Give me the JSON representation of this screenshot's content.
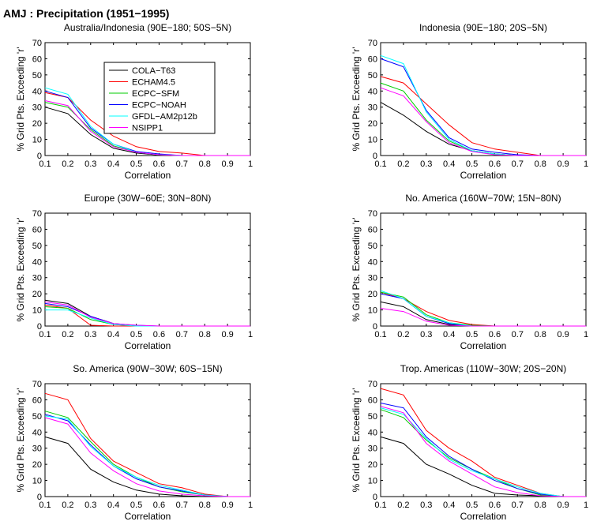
{
  "figure_title": "AMJ : Precipitation (1951−1995)",
  "legend_entries": [
    {
      "name": "COLA−T63",
      "color": "#000000"
    },
    {
      "name": "ECHAM4.5",
      "color": "#ff0000"
    },
    {
      "name": "ECPC−SFM",
      "color": "#00cc00"
    },
    {
      "name": "ECPC−NOAH",
      "color": "#0000ff"
    },
    {
      "name": "GFDL−AM2p12b",
      "color": "#00ffff"
    },
    {
      "name": "NSIPP1",
      "color": "#ff00ff"
    }
  ],
  "chart_data": [
    {
      "type": "line",
      "title": "Australia/Indonesia (90E−180; 50S−5N)",
      "xlabel": "Correlation",
      "ylabel": "% Grid Pts. Exceeding 'r'",
      "x": [
        0.1,
        0.2,
        0.3,
        0.4,
        0.5,
        0.6,
        0.7,
        0.8,
        0.9,
        1.0
      ],
      "xticks": [
        "0.1",
        "0.2",
        "0.3",
        "0.4",
        "0.5",
        "0.6",
        "0.7",
        "0.8",
        "0.9",
        "1"
      ],
      "yticks": [
        "0",
        "10",
        "20",
        "30",
        "40",
        "50",
        "60",
        "70"
      ],
      "xlim": [
        0.1,
        1.0
      ],
      "ylim": [
        0,
        70
      ],
      "legend": "upper-center",
      "series": [
        {
          "name": "COLA−T63",
          "color": "#000000",
          "values": [
            30,
            26,
            13,
            4.5,
            1.5,
            0.3,
            0,
            0,
            0,
            0
          ]
        },
        {
          "name": "ECHAM4.5",
          "color": "#ff0000",
          "values": [
            39,
            36,
            22,
            12,
            5.5,
            2.5,
            1.5,
            0,
            0,
            0
          ]
        },
        {
          "name": "ECPC−SFM",
          "color": "#00cc00",
          "values": [
            33,
            30,
            16,
            6,
            2,
            0.5,
            0,
            0,
            0,
            0
          ]
        },
        {
          "name": "ECPC−NOAH",
          "color": "#0000ff",
          "values": [
            40,
            36,
            17,
            7,
            2.5,
            1,
            0,
            0,
            0,
            0
          ]
        },
        {
          "name": "GFDL−AM2p12b",
          "color": "#00ffff",
          "values": [
            42,
            38,
            18,
            7,
            2,
            0.5,
            0,
            0,
            0,
            0
          ]
        },
        {
          "name": "NSIPP1",
          "color": "#ff00ff",
          "values": [
            34,
            31,
            15,
            5.5,
            2,
            0.5,
            0,
            0,
            0,
            0
          ]
        }
      ]
    },
    {
      "type": "line",
      "title": "Indonesia (90E−180; 20S−5N)",
      "xlabel": "Correlation",
      "ylabel": "% Grid Pts. Exceeding 'r'",
      "x": [
        0.1,
        0.2,
        0.3,
        0.4,
        0.5,
        0.6,
        0.7,
        0.8,
        0.9,
        1.0
      ],
      "xticks": [
        "0.1",
        "0.2",
        "0.3",
        "0.4",
        "0.5",
        "0.6",
        "0.7",
        "0.8",
        "0.9",
        "1"
      ],
      "yticks": [
        "0",
        "10",
        "20",
        "30",
        "40",
        "50",
        "60",
        "70"
      ],
      "xlim": [
        0.1,
        1.0
      ],
      "ylim": [
        0,
        70
      ],
      "series": [
        {
          "name": "COLA−T63",
          "color": "#000000",
          "values": [
            33,
            25,
            15,
            7,
            3,
            1,
            0,
            0,
            0,
            0
          ]
        },
        {
          "name": "ECHAM4.5",
          "color": "#ff0000",
          "values": [
            49,
            45,
            32,
            19,
            8,
            4,
            2,
            0,
            0,
            0
          ]
        },
        {
          "name": "ECPC−SFM",
          "color": "#00cc00",
          "values": [
            45,
            40,
            22,
            9,
            3,
            1,
            0,
            0,
            0,
            0
          ]
        },
        {
          "name": "ECPC−NOAH",
          "color": "#0000ff",
          "values": [
            60,
            55,
            28,
            11,
            4,
            2,
            0.5,
            0,
            0,
            0
          ]
        },
        {
          "name": "GFDL−AM2p12b",
          "color": "#00ffff",
          "values": [
            62,
            57,
            27,
            10,
            3,
            1,
            0,
            0,
            0,
            0
          ]
        },
        {
          "name": "NSIPP1",
          "color": "#ff00ff",
          "values": [
            42,
            37,
            21,
            8,
            2.5,
            0.5,
            0,
            0,
            0,
            0
          ]
        }
      ]
    },
    {
      "type": "line",
      "title": "Europe (30W−60E; 30N−80N)",
      "xlabel": "Correlation",
      "ylabel": "% Grid Pts. Exceeding 'r'",
      "x": [
        0.1,
        0.2,
        0.3,
        0.4,
        0.5,
        0.6,
        0.7,
        0.8,
        0.9,
        1.0
      ],
      "xticks": [
        "0.1",
        "0.2",
        "0.3",
        "0.4",
        "0.5",
        "0.6",
        "0.7",
        "0.8",
        "0.9",
        "1"
      ],
      "yticks": [
        "0",
        "10",
        "20",
        "30",
        "40",
        "50",
        "60",
        "70"
      ],
      "xlim": [
        0.1,
        1.0
      ],
      "ylim": [
        0,
        70
      ],
      "series": [
        {
          "name": "COLA−T63",
          "color": "#000000",
          "values": [
            16,
            14,
            6,
            1.5,
            0,
            0,
            0,
            0,
            0,
            0
          ]
        },
        {
          "name": "ECHAM4.5",
          "color": "#ff0000",
          "values": [
            13,
            11,
            0.5,
            0,
            0,
            0,
            0,
            0,
            0,
            0
          ]
        },
        {
          "name": "ECPC−SFM",
          "color": "#00cc00",
          "values": [
            12,
            11,
            4,
            1,
            0,
            0,
            0,
            0,
            0,
            0
          ]
        },
        {
          "name": "ECPC−NOAH",
          "color": "#0000ff",
          "values": [
            14,
            12,
            6,
            1.5,
            0.5,
            0,
            0,
            0,
            0,
            0
          ]
        },
        {
          "name": "GFDL−AM2p12b",
          "color": "#00ffff",
          "values": [
            10,
            10,
            5,
            1,
            0,
            0,
            0,
            0,
            0,
            0
          ]
        },
        {
          "name": "NSIPP1",
          "color": "#ff00ff",
          "values": [
            15,
            13,
            5.5,
            1.5,
            0.5,
            0,
            0,
            0,
            0,
            0
          ]
        }
      ]
    },
    {
      "type": "line",
      "title": "No. America (160W−70W; 15N−80N)",
      "xlabel": "Correlation",
      "ylabel": "% Grid Pts. Exceeding 'r'",
      "x": [
        0.1,
        0.2,
        0.3,
        0.4,
        0.5,
        0.6,
        0.7,
        0.8,
        0.9,
        1.0
      ],
      "xticks": [
        "0.1",
        "0.2",
        "0.3",
        "0.4",
        "0.5",
        "0.6",
        "0.7",
        "0.8",
        "0.9",
        "1"
      ],
      "yticks": [
        "0",
        "10",
        "20",
        "30",
        "40",
        "50",
        "60",
        "70"
      ],
      "xlim": [
        0.1,
        1.0
      ],
      "ylim": [
        0,
        70
      ],
      "series": [
        {
          "name": "COLA−T63",
          "color": "#000000",
          "values": [
            15,
            12,
            4,
            1,
            0,
            0,
            0,
            0,
            0,
            0
          ]
        },
        {
          "name": "ECHAM4.5",
          "color": "#ff0000",
          "values": [
            21,
            17,
            9,
            3.5,
            1,
            0,
            0,
            0,
            0,
            0
          ]
        },
        {
          "name": "ECPC−SFM",
          "color": "#00cc00",
          "values": [
            21,
            18,
            7,
            2,
            0.5,
            0,
            0,
            0,
            0,
            0
          ]
        },
        {
          "name": "ECPC−NOAH",
          "color": "#0000ff",
          "values": [
            20,
            17,
            6,
            1.5,
            0,
            0,
            0,
            0,
            0,
            0
          ]
        },
        {
          "name": "GFDL−AM2p12b",
          "color": "#00ffff",
          "values": [
            22,
            17,
            6,
            2,
            0,
            0,
            0,
            0,
            0,
            0
          ]
        },
        {
          "name": "NSIPP1",
          "color": "#ff00ff",
          "values": [
            11,
            9,
            3,
            0.5,
            0,
            0,
            0,
            0,
            0,
            0
          ]
        }
      ]
    },
    {
      "type": "line",
      "title": "So. America (90W−30W; 60S−15N)",
      "xlabel": "Correlation",
      "ylabel": "% Grid Pts. Exceeding 'r'",
      "x": [
        0.1,
        0.2,
        0.3,
        0.4,
        0.5,
        0.6,
        0.7,
        0.8,
        0.9,
        1.0
      ],
      "xticks": [
        "0.1",
        "0.2",
        "0.3",
        "0.4",
        "0.5",
        "0.6",
        "0.7",
        "0.8",
        "0.9",
        "1"
      ],
      "yticks": [
        "0",
        "10",
        "20",
        "30",
        "40",
        "50",
        "60",
        "70"
      ],
      "xlim": [
        0.1,
        1.0
      ],
      "ylim": [
        0,
        70
      ],
      "series": [
        {
          "name": "COLA−T63",
          "color": "#000000",
          "values": [
            37,
            33,
            17,
            9,
            4,
            1.5,
            0.5,
            0,
            0,
            0
          ]
        },
        {
          "name": "ECHAM4.5",
          "color": "#ff0000",
          "values": [
            64,
            60,
            36,
            22,
            15,
            8,
            5.5,
            1.5,
            0,
            0
          ]
        },
        {
          "name": "ECPC−SFM",
          "color": "#00cc00",
          "values": [
            53,
            49,
            34,
            20,
            12,
            6,
            3,
            1,
            0,
            0
          ]
        },
        {
          "name": "ECPC−NOAH",
          "color": "#0000ff",
          "values": [
            51,
            47,
            32,
            19,
            11,
            6,
            3.5,
            1,
            0,
            0
          ]
        },
        {
          "name": "GFDL−AM2p12b",
          "color": "#00ffff",
          "values": [
            50,
            48,
            31,
            19,
            12,
            7,
            4,
            1,
            0,
            0
          ]
        },
        {
          "name": "NSIPP1",
          "color": "#ff00ff",
          "values": [
            49,
            45,
            27,
            16,
            8,
            3.5,
            1.5,
            0.5,
            0,
            0
          ]
        }
      ]
    },
    {
      "type": "line",
      "title": "Trop. Americas (110W−30W; 20S−20N)",
      "xlabel": "Correlation",
      "ylabel": "% Grid Pts. Exceeding 'r'",
      "x": [
        0.1,
        0.2,
        0.3,
        0.4,
        0.5,
        0.6,
        0.7,
        0.8,
        0.9,
        1.0
      ],
      "xticks": [
        "0.1",
        "0.2",
        "0.3",
        "0.4",
        "0.5",
        "0.6",
        "0.7",
        "0.8",
        "0.9",
        "1"
      ],
      "yticks": [
        "0",
        "10",
        "20",
        "30",
        "40",
        "50",
        "60",
        "70"
      ],
      "xlim": [
        0.1,
        1.0
      ],
      "ylim": [
        0,
        70
      ],
      "series": [
        {
          "name": "COLA−T63",
          "color": "#000000",
          "values": [
            37,
            33,
            20,
            14,
            7,
            2,
            1,
            0.5,
            0,
            0
          ]
        },
        {
          "name": "ECHAM4.5",
          "color": "#ff0000",
          "values": [
            67,
            63,
            41,
            30,
            22,
            12,
            7,
            2,
            0,
            0
          ]
        },
        {
          "name": "ECPC−SFM",
          "color": "#00cc00",
          "values": [
            54,
            49,
            35,
            24,
            17,
            11,
            5,
            1,
            0,
            0
          ]
        },
        {
          "name": "ECPC−NOAH",
          "color": "#0000ff",
          "values": [
            58,
            55,
            37,
            25,
            17,
            10,
            5,
            1.5,
            0,
            0
          ]
        },
        {
          "name": "GFDL−AM2p12b",
          "color": "#00ffff",
          "values": [
            55,
            51,
            36,
            23,
            16,
            11,
            6,
            2,
            0,
            0
          ]
        },
        {
          "name": "NSIPP1",
          "color": "#ff00ff",
          "values": [
            56,
            52,
            33,
            22,
            14,
            6,
            2.5,
            0.5,
            0,
            0
          ]
        }
      ]
    }
  ]
}
